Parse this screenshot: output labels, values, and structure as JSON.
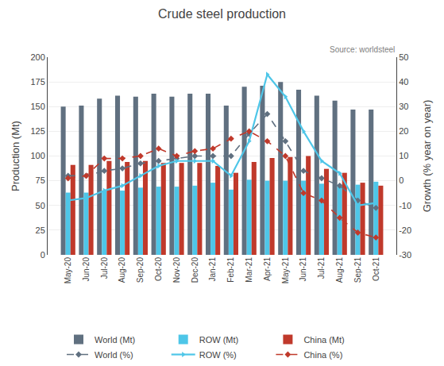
{
  "chart_data": {
    "type": "bar",
    "title": "Crude steel production",
    "categories": [
      "May-20",
      "Jun-20",
      "Jul-20",
      "Aug-20",
      "Sep-20",
      "Oct-20",
      "Nov-20",
      "Dec-20",
      "Jan-21",
      "Feb-21",
      "Mar-21",
      "Apr-21",
      "May-21",
      "Jun-21",
      "Jul-21",
      "Aug-21",
      "Sep-21",
      "Oct-21"
    ],
    "series": [
      {
        "name": "World (Mt)",
        "type": "bar",
        "color": "#607080",
        "values": [
          150,
          151,
          158,
          161,
          160,
          163,
          160,
          163,
          163,
          151,
          170,
          171,
          175,
          167,
          161,
          156,
          147,
          147
        ]
      },
      {
        "name": "ROW (Mt)",
        "type": "bar",
        "color": "#4ec6e8",
        "values": [
          63,
          63,
          65,
          65,
          68,
          69,
          69,
          70,
          73,
          66,
          76,
          75,
          75,
          75,
          72,
          71,
          71,
          74
        ]
      },
      {
        "name": "China (Mt)",
        "type": "bar",
        "color": "#c0392b",
        "values": [
          91,
          91,
          95,
          94,
          95,
          93,
          93,
          93,
          90,
          83,
          94,
          98,
          99,
          100,
          87,
          83,
          73,
          70
        ]
      },
      {
        "name": "World (%)",
        "type": "line",
        "axis": "y2",
        "color": "#607080",
        "line_style": "dashed",
        "marker": "diamond",
        "values": [
          2,
          2,
          4,
          5,
          7,
          8,
          9,
          10,
          10,
          10,
          19,
          27,
          16,
          4,
          1,
          -2,
          -8,
          -11
        ]
      },
      {
        "name": "ROW (%)",
        "type": "line",
        "axis": "y2",
        "color": "#4ec6e8",
        "line_style": "solid",
        "marker": "triangle-right",
        "values": [
          -8,
          -7,
          -4,
          -2,
          2,
          6,
          8,
          8,
          8,
          2,
          16,
          43,
          34,
          20,
          8,
          3,
          -10,
          -9
        ]
      },
      {
        "name": "China (%)",
        "type": "line",
        "axis": "y2",
        "color": "#c0392b",
        "line_style": "dashed",
        "marker": "diamond",
        "values": [
          1,
          2,
          9,
          9,
          10,
          13,
          10,
          12,
          13,
          17,
          20,
          16,
          10,
          -5,
          -8,
          -15,
          -21,
          -23
        ]
      }
    ],
    "ylabel": "Production (Mt)",
    "y2label": "Growth (% year on year)",
    "ylim": [
      0,
      200
    ],
    "yticks": [
      0,
      25,
      50,
      75,
      100,
      125,
      150,
      175,
      200
    ],
    "y2lim": [
      -30,
      50
    ],
    "y2ticks": [
      -30,
      -20,
      -10,
      0,
      10,
      20,
      30,
      40,
      50
    ],
    "grid": true,
    "legend": "bottom",
    "annotation": "Source: worldsteel"
  }
}
